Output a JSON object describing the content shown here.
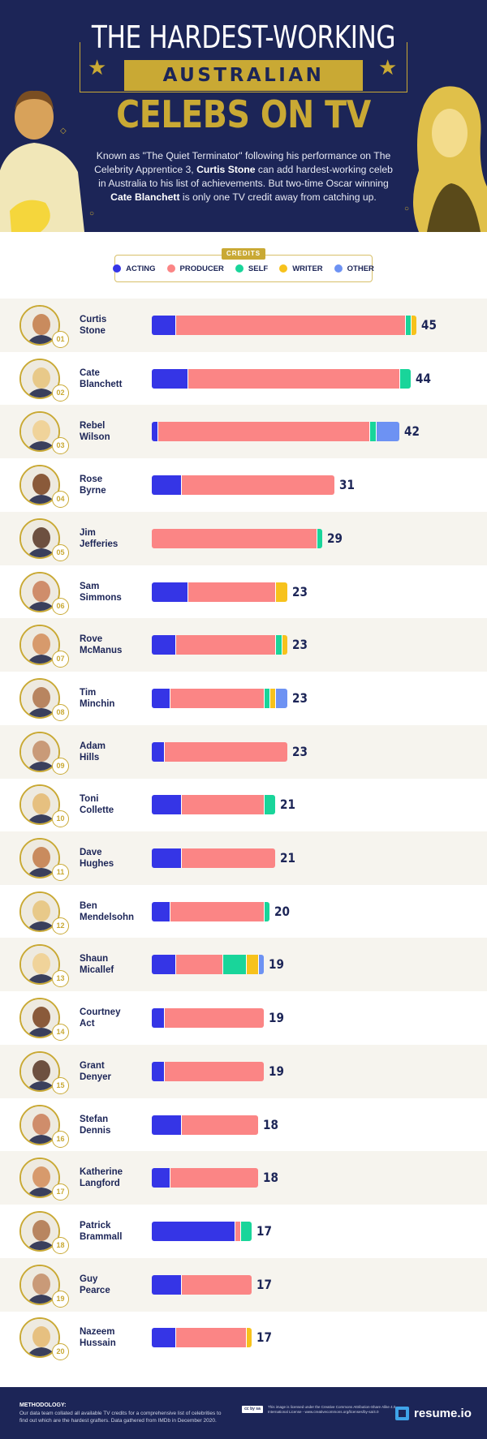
{
  "header": {
    "title_line1": "THE HARDEST-WORKING",
    "title_line2": "AUSTRALIAN",
    "title_line3": "CELEBS ON TV",
    "desc_part1": "Known as \"The Quiet Terminator\" following his performance on The Celebrity Apprentice 3, ",
    "desc_bold1": "Curtis Stone",
    "desc_part2": " can add hardest-working celeb in Australia to his list of achievements. But two-time Oscar winning ",
    "desc_bold2": "Cate Blanchett",
    "desc_part3": " is only one TV credit away from catching up.",
    "accent_color": "#c9a934",
    "background_color": "#1c2557"
  },
  "legend": {
    "tag": "CREDITS",
    "items": [
      {
        "label": "ACTING",
        "color": "#3535e6"
      },
      {
        "label": "PRODUCER",
        "color": "#fb8585"
      },
      {
        "label": "SELF",
        "color": "#19d59a"
      },
      {
        "label": "WRITER",
        "color": "#f7c21c"
      },
      {
        "label": "OTHER",
        "color": "#6d92f3"
      }
    ]
  },
  "chart_data": {
    "type": "bar",
    "orientation": "horizontal-stacked",
    "title": "THE HARDEST-WORKING AUSTRALIAN CELEBS ON TV",
    "series_names": [
      "ACTING",
      "PRODUCER",
      "SELF",
      "WRITER",
      "OTHER"
    ],
    "rows": [
      {
        "rank": "01",
        "name_first": "Curtis",
        "name_last": "Stone",
        "total": 45,
        "values": [
          4,
          39,
          1,
          1,
          0
        ]
      },
      {
        "rank": "02",
        "name_first": "Cate",
        "name_last": "Blanchett",
        "total": 44,
        "values": [
          6,
          36,
          2,
          0,
          0
        ]
      },
      {
        "rank": "03",
        "name_first": "Rebel",
        "name_last": "Wilson",
        "total": 42,
        "values": [
          1,
          36,
          1,
          0,
          4
        ]
      },
      {
        "rank": "04",
        "name_first": "Rose",
        "name_last": "Byrne",
        "total": 31,
        "values": [
          5,
          26,
          0,
          0,
          0
        ]
      },
      {
        "rank": "05",
        "name_first": "Jim",
        "name_last": "Jefferies",
        "total": 29,
        "values": [
          0,
          28,
          1,
          0,
          0
        ]
      },
      {
        "rank": "06",
        "name_first": "Sam",
        "name_last": "Simmons",
        "total": 23,
        "values": [
          6,
          15,
          0,
          2,
          0
        ]
      },
      {
        "rank": "07",
        "name_first": "Rove",
        "name_last": "McManus",
        "total": 23,
        "values": [
          4,
          17,
          1,
          1,
          0
        ]
      },
      {
        "rank": "08",
        "name_first": "Tim",
        "name_last": "Minchin",
        "total": 23,
        "values": [
          3,
          16,
          1,
          1,
          2
        ]
      },
      {
        "rank": "09",
        "name_first": "Adam",
        "name_last": "Hills",
        "total": 23,
        "values": [
          2,
          21,
          0,
          0,
          0
        ]
      },
      {
        "rank": "10",
        "name_first": "Toni",
        "name_last": "Collette",
        "total": 21,
        "values": [
          5,
          14,
          2,
          0,
          0
        ]
      },
      {
        "rank": "11",
        "name_first": "Dave",
        "name_last": "Hughes",
        "total": 21,
        "values": [
          5,
          16,
          0,
          0,
          0
        ]
      },
      {
        "rank": "12",
        "name_first": "Ben",
        "name_last": "Mendelsohn",
        "total": 20,
        "values": [
          3,
          16,
          1,
          0,
          0
        ]
      },
      {
        "rank": "13",
        "name_first": "Shaun",
        "name_last": "Micallef",
        "total": 19,
        "values": [
          4,
          8,
          4,
          2,
          1
        ]
      },
      {
        "rank": "14",
        "name_first": "Courtney",
        "name_last": "Act",
        "total": 19,
        "values": [
          2,
          17,
          0,
          0,
          0
        ]
      },
      {
        "rank": "15",
        "name_first": "Grant",
        "name_last": "Denyer",
        "total": 19,
        "values": [
          2,
          17,
          0,
          0,
          0
        ]
      },
      {
        "rank": "16",
        "name_first": "Stefan",
        "name_last": "Dennis",
        "total": 18,
        "values": [
          5,
          13,
          0,
          0,
          0
        ]
      },
      {
        "rank": "17",
        "name_first": "Katherine",
        "name_last": "Langford",
        "total": 18,
        "values": [
          3,
          15,
          0,
          0,
          0
        ]
      },
      {
        "rank": "18",
        "name_first": "Patrick",
        "name_last": "Brammall",
        "total": 17,
        "values": [
          14,
          1,
          2,
          0,
          0
        ]
      },
      {
        "rank": "19",
        "name_first": "Guy",
        "name_last": "Pearce",
        "total": 17,
        "values": [
          5,
          12,
          0,
          0,
          0
        ]
      },
      {
        "rank": "20",
        "name_first": "Nazeem",
        "name_last": "Hussain",
        "total": 17,
        "values": [
          4,
          12,
          0,
          1,
          0
        ]
      }
    ],
    "xlim": [
      0,
      45
    ],
    "grid": false,
    "legend_position": "top-center"
  },
  "footer": {
    "methodology_heading": "METHODOLOGY:",
    "methodology_text": "Our data team collated all available TV credits for a comprehensive list of celebrities to find out which are the hardest grafters. Data gathered from IMDb in December 2020.",
    "license_badge": "cc by sa",
    "license_text": "This image is licensed under the Creative Commons Attribution-Share Alike 4.0 International License - www.creativecommons.org/licenses/by-sa/4.0",
    "brand": "resume.io"
  }
}
